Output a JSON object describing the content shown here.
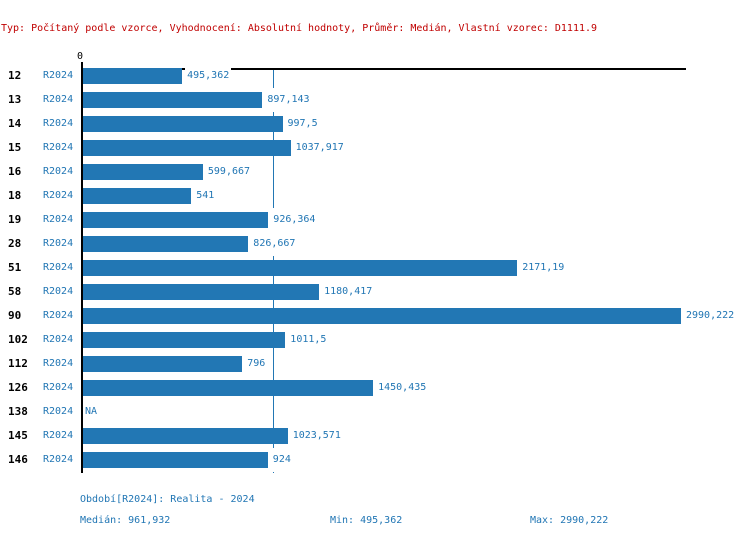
{
  "header": {
    "text": "Typ: Počítaný podle vzorce, Vyhodnocení: Absolutní hodnoty, Průměr: Medián, Vlastní vzorec: D1111.9"
  },
  "chart_data": {
    "type": "bar",
    "orientation": "horizontal",
    "title": "",
    "xlabel": "",
    "ylabel": "",
    "xlim": [
      0,
      3000
    ],
    "grid": false,
    "x_axis": {
      "zero_label": "0"
    },
    "series_label": "R2024",
    "categories": [
      "12",
      "13",
      "14",
      "15",
      "16",
      "18",
      "19",
      "28",
      "51",
      "58",
      "90",
      "102",
      "112",
      "126",
      "138",
      "145",
      "146"
    ],
    "values": [
      495.362,
      897.143,
      997.5,
      1037.917,
      599.667,
      541,
      926.364,
      826.667,
      2171.19,
      1180.417,
      2990.222,
      1011.5,
      796,
      1450.435,
      null,
      1023.571,
      924
    ],
    "value_labels": [
      "495,362",
      "897,143",
      "997,5",
      "1037,917",
      "599,667",
      "541",
      "926,364",
      "826,667",
      "2171,19",
      "1180,417",
      "2990,222",
      "1011,5",
      "796",
      "1450,435",
      "NA",
      "1023,571",
      "924"
    ],
    "median_reference": 961.932,
    "legend_position": "none"
  },
  "footer": {
    "period": "Období[R2024]: Realita - 2024",
    "median": "Medián: 961,932",
    "min": "Min: 495,362",
    "max": "Max: 2990,222"
  },
  "colors": {
    "bar": "#2277b4",
    "blue_text": "#2176b4",
    "median_line": "#2277b4",
    "header_red": "#c00000",
    "axis": "#000000",
    "background": "#ffffff"
  }
}
